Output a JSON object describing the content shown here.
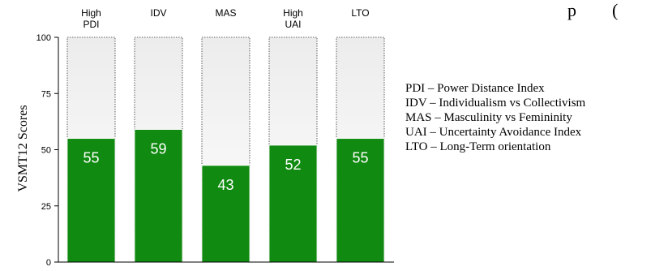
{
  "chart_data": {
    "type": "bar",
    "categories": [
      [
        "High",
        "PDI"
      ],
      [
        "IDV"
      ],
      [
        "MAS"
      ],
      [
        "High",
        "UAI"
      ],
      [
        "LTO"
      ]
    ],
    "values": [
      55,
      59,
      43,
      52,
      55
    ],
    "max_value": 100,
    "ylabel": "VSMT12 Scores",
    "ylim": [
      0,
      100
    ],
    "yticks": [
      "0",
      "25",
      "50",
      "75",
      "100"
    ],
    "partial_title": "p        (",
    "colors": {
      "bar_fill": "#108a10",
      "background_top": "#ececec",
      "background_bottom": "#ffffff"
    },
    "legend_notes": [
      "PDI – Power Distance Index",
      "IDV – Individualism vs Collectivism",
      "MAS – Masculinity vs Femininity",
      "UAI – Uncertainty Avoidance Index",
      "LTO – Long-Term orientation"
    ]
  }
}
